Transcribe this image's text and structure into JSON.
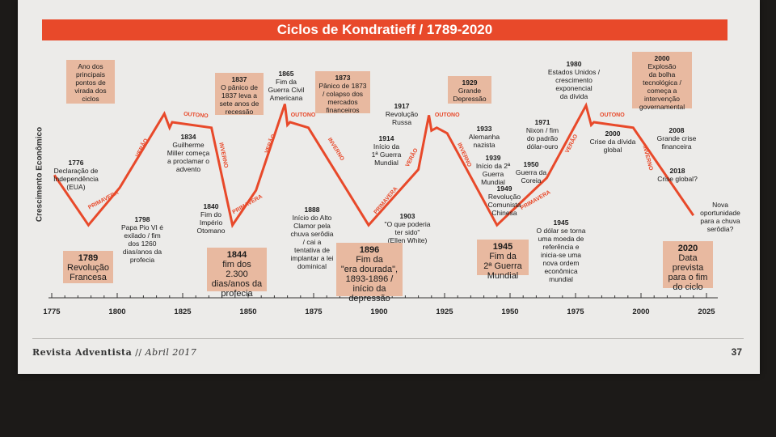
{
  "chart_data": {
    "type": "line",
    "title": "Ciclos de Kondratieff / 1789-2020",
    "ylabel": "Crescimento Econômico",
    "xlim": [
      1775,
      2025
    ],
    "x_ticks": [
      1775,
      1800,
      1825,
      1850,
      1875,
      1900,
      1925,
      1950,
      1975,
      2000,
      2025
    ],
    "series": [
      {
        "x": [
          1776,
          1789,
          1801,
          1818,
          1820,
          1821,
          1836,
          1844,
          1853,
          1864,
          1865,
          1866,
          1873,
          1896,
          1915,
          1919,
          1920,
          1922,
          1926,
          1945,
          1964,
          1979,
          1981,
          1982,
          1997,
          2020
        ],
        "y": [
          0.44,
          0.08,
          0.35,
          0.88,
          0.78,
          0.82,
          0.78,
          0.08,
          0.33,
          0.95,
          0.8,
          0.82,
          0.78,
          0.08,
          0.48,
          0.87,
          0.76,
          0.78,
          0.74,
          0.08,
          0.42,
          0.94,
          0.8,
          0.82,
          0.78,
          0.15
        ]
      }
    ],
    "seasons": [
      {
        "label": "PRIMAVERA",
        "x": 1795,
        "y": 0.25,
        "rot": -28
      },
      {
        "label": "VERÃO",
        "x": 1810,
        "y": 0.63,
        "rot": -62
      },
      {
        "label": "OUTONO",
        "x": 1830,
        "y": 0.86,
        "rot": 5
      },
      {
        "label": "INVERNO",
        "x": 1840,
        "y": 0.58,
        "rot": 78
      },
      {
        "label": "PRIMAVERA",
        "x": 1850,
        "y": 0.22,
        "rot": -30
      },
      {
        "label": "VERÃO",
        "x": 1859,
        "y": 0.66,
        "rot": -68
      },
      {
        "label": "OUTONO",
        "x": 1871,
        "y": 0.86,
        "rot": 0
      },
      {
        "label": "INVERNO",
        "x": 1883,
        "y": 0.62,
        "rot": 58
      },
      {
        "label": "PRIMAVERA",
        "x": 1903,
        "y": 0.25,
        "rot": -50
      },
      {
        "label": "VERÃO",
        "x": 1913,
        "y": 0.56,
        "rot": -62
      },
      {
        "label": "OUTONO",
        "x": 1926,
        "y": 0.86,
        "rot": 0
      },
      {
        "label": "INVERNO",
        "x": 1932,
        "y": 0.58,
        "rot": 65
      },
      {
        "label": "PRIMAVERA",
        "x": 1960,
        "y": 0.25,
        "rot": -30
      },
      {
        "label": "VERÃO",
        "x": 1974,
        "y": 0.66,
        "rot": -62
      },
      {
        "label": "OUTONO",
        "x": 1989,
        "y": 0.86,
        "rot": 0
      },
      {
        "label": "INVERNO",
        "x": 2002,
        "y": 0.56,
        "rot": 75
      }
    ]
  },
  "annotations": [
    {
      "id": "1776",
      "year": "1776",
      "text": "Declaração de\nIndependência\n(EUA)"
    },
    {
      "id": "1798",
      "year": "1798",
      "text": "Papa Pio VI é\nexilado / fim\ndos 1260\ndias/anos da\nprofecia"
    },
    {
      "id": "1834",
      "year": "1834",
      "text": "Guilherme\nMiller começa\na proclamar o\nadvento"
    },
    {
      "id": "1840",
      "year": "1840",
      "text": "Fim do\nImpério\nOtomano"
    },
    {
      "id": "1865",
      "year": "1865",
      "text": "Fim da\nGuerra Civil\nAmericana"
    },
    {
      "id": "1888",
      "year": "1888",
      "text": "Início do Alto\nClamor pela\nchuva serôdia\n/ cai a\ntentativa de\nimplantar a lei\ndominical"
    },
    {
      "id": "1903",
      "year": "1903",
      "text": "\"O que poderia\nter sido\"\n(Ellen White)"
    },
    {
      "id": "1914",
      "year": "1914",
      "text": "Início da\n1ª Guerra\nMundial"
    },
    {
      "id": "1917",
      "year": "1917",
      "text": "Revolução\nRussa"
    },
    {
      "id": "1933",
      "year": "1933",
      "text": "Alemanha\nnazista"
    },
    {
      "id": "1939",
      "year": "1939",
      "text": "Início da 2ª\nGuerra\nMundial"
    },
    {
      "id": "1949",
      "year": "1949",
      "text": "Revolução\nComunista\nChinesa"
    },
    {
      "id": "1950",
      "year": "1950",
      "text": "Guerra da\nCoreia"
    },
    {
      "id": "1971",
      "year": "1971",
      "text": "Nixon / fim\ndo padrão\ndólar-ouro"
    },
    {
      "id": "1980",
      "year": "1980",
      "text": "Estados Unidos /\ncrescimento\nexponencial\nda dívida"
    },
    {
      "id": "2000b",
      "year": "2000",
      "text": "Crise da dívida\nglobal"
    },
    {
      "id": "1945b",
      "year": "1945",
      "text": "O dólar se torna\numa moeda de\nreferência e\ninicia-se uma\nnova ordem\neconômica\nmundial"
    },
    {
      "id": "2008",
      "year": "2008",
      "text": "Grande crise\nfinanceira"
    },
    {
      "id": "2018",
      "year": "2018",
      "text": "Crise global?"
    },
    {
      "id": "nova",
      "year": "",
      "text": "Nova\noportunidade\npara a chuva\nserôdia?"
    }
  ],
  "boxes": [
    {
      "id": "legend",
      "year": "",
      "text": "Ano dos\nprincipais\npontos de\nvirada dos\nciclos"
    },
    {
      "id": "1837",
      "year": "1837",
      "text": "O pânico de\n1837 leva a\nsete anos de\nrecessão"
    },
    {
      "id": "1873",
      "year": "1873",
      "text": "Pânico de 1873\n/ colapso dos\nmercados\nfinanceiros"
    },
    {
      "id": "1929",
      "year": "1929",
      "text": "Grande\nDepressão"
    },
    {
      "id": "2000a",
      "year": "2000",
      "text": "Explosão\nda bolha\ntecnológica /\ncomeça a\nintervenção\ngovernamental"
    },
    {
      "id": "1789",
      "year": "1789",
      "text": "Revolução\nFrancesa"
    },
    {
      "id": "1844",
      "year": "1844",
      "text": "fim dos\n2.300\ndias/anos da\nprofecia"
    },
    {
      "id": "1896",
      "year": "1896",
      "text": "Fim da\n\"era dourada\",\n1893-1896 /\ninício da\ndepressão"
    },
    {
      "id": "1945a",
      "year": "1945",
      "text": "Fim da\n2ª Guerra\nMundial"
    },
    {
      "id": "2020",
      "year": "2020",
      "text": "Data\nprevista\npara o fim\ndo ciclo"
    }
  ],
  "footer": {
    "magazine": "Revista Adventista",
    "separator": " // ",
    "date": "Abril 2017",
    "page_number": "37"
  },
  "colors": {
    "accent": "#e8492a",
    "box": "#e8b9a0",
    "paper": "#ecebe9"
  }
}
